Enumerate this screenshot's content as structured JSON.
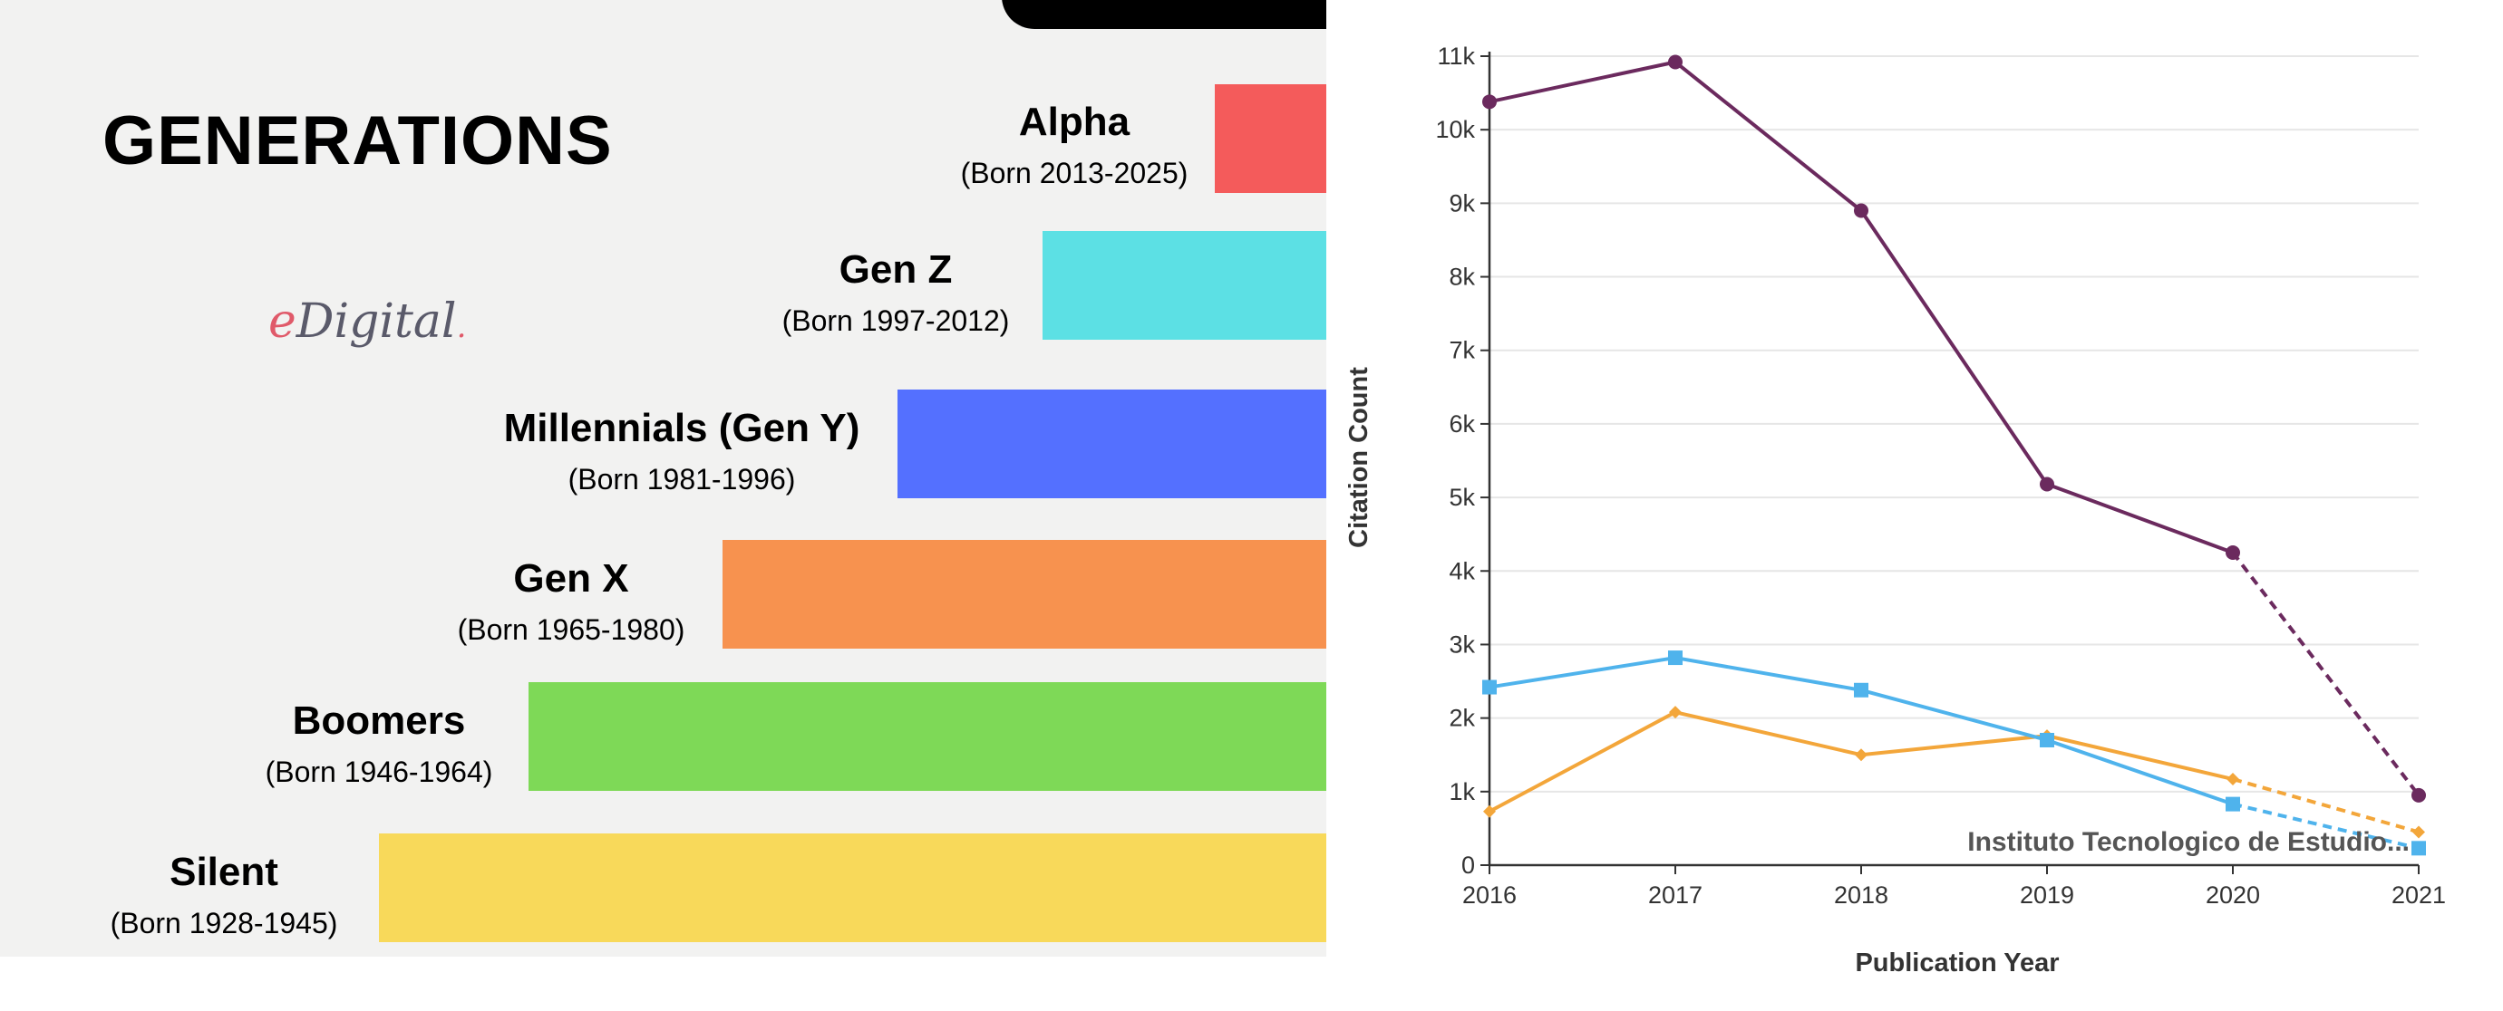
{
  "generations": {
    "title": "GENERATIONS",
    "brand": {
      "e": "e",
      "rest": "Digital",
      "dot": "."
    },
    "items": [
      {
        "name": "Alpha",
        "born": "(Born 2013-2025)",
        "color": "#f45b5b"
      },
      {
        "name": "Gen Z",
        "born": "(Born 1997-2012)",
        "color": "#5ce0e4"
      },
      {
        "name": "Millennials (Gen Y)",
        "born": "(Born 1981-1996)",
        "color": "#5470ff"
      },
      {
        "name": "Gen X",
        "born": "(Born 1965-1980)",
        "color": "#f7924f"
      },
      {
        "name": "Boomers",
        "born": "(Born 1946-1964)",
        "color": "#7ed957"
      },
      {
        "name": "Silent",
        "born": "(Born 1928-1945)",
        "color": "#f8d95a"
      }
    ]
  },
  "chart_data": {
    "type": "line",
    "title": "",
    "xlabel": "Publication Year",
    "ylabel": "Citation Count",
    "x": [
      2016,
      2017,
      2018,
      2019,
      2020,
      2021
    ],
    "x_tick_labels": [
      "2016",
      "2017",
      "2018",
      "2019",
      "2020",
      "2021"
    ],
    "ylim": [
      0,
      11000
    ],
    "y_ticks": [
      0,
      1000,
      2000,
      3000,
      4000,
      5000,
      6000,
      7000,
      8000,
      9000,
      10000,
      11000
    ],
    "y_tick_labels": [
      "0",
      "1k",
      "2k",
      "3k",
      "4k",
      "5k",
      "6k",
      "7k",
      "8k",
      "9k",
      "10k",
      "11k"
    ],
    "grid": true,
    "dashed_last_segment": true,
    "series": [
      {
        "color": "#6b2a5e",
        "marker": "circle",
        "values": [
          10380,
          10920,
          8900,
          5180,
          4250,
          950
        ]
      },
      {
        "color": "#f3a63a",
        "marker": "diamond",
        "values": [
          730,
          2080,
          1500,
          1760,
          1170,
          450
        ]
      },
      {
        "color": "#4fb3ec",
        "marker": "square",
        "values": [
          2420,
          2820,
          2380,
          1700,
          830,
          230
        ]
      }
    ],
    "annotations": [
      {
        "text": "Instituto Tecnologico de Estudio...",
        "x": 2021,
        "y": 200
      }
    ]
  }
}
